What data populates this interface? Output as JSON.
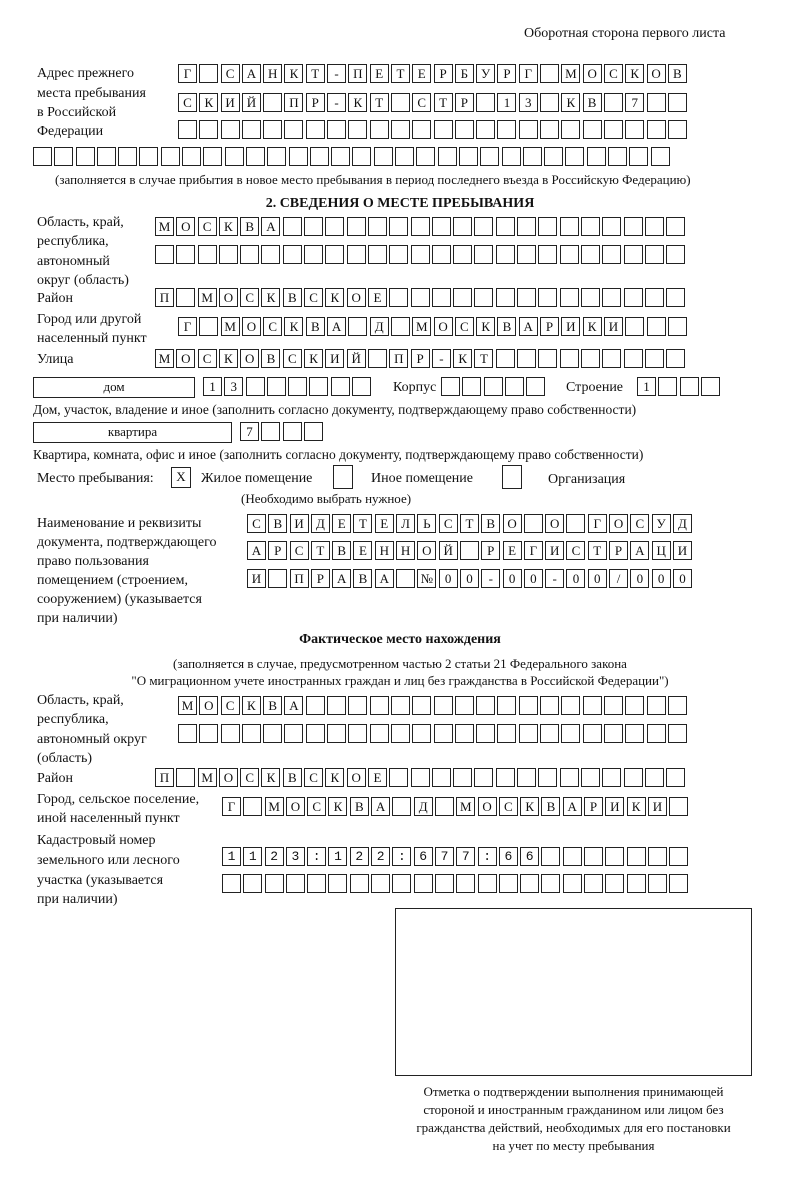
{
  "header": "Оборотная сторона первого листа",
  "prev_address": {
    "label": [
      "Адрес прежнего",
      "места пребывания",
      "в Российской",
      "Федерации"
    ],
    "rows": [
      "Г САНКТ-ПЕТЕРБУРГ МОСКОВ",
      "СКИЙ ПР-КТ СТР 13 КВ 7",
      "",
      ""
    ],
    "note": "(заполняется в случае прибытия в новое место пребывания в период последнего въезда в Российскую Федерацию)"
  },
  "section2": {
    "title": "2. СВЕДЕНИЯ О МЕСТЕ ПРЕБЫВАНИЯ",
    "region_label": [
      "Область, край,",
      "республика,",
      "автономный",
      "округ (область)"
    ],
    "region_rows": [
      "МОСКВА",
      ""
    ],
    "district_label": "Район",
    "district": "П МОСКВСКОЕ",
    "city_label": [
      "Город или другой",
      "населенный пункт"
    ],
    "city": "Г МОСКВА Д МОСКВАРИКИ",
    "street_label": "Улица",
    "street": "МОСКОВСКИЙ ПР-КТ",
    "house_type": "дом",
    "house": "13",
    "korpus_label": "Корпус",
    "korpus": "",
    "building_label": "Строение",
    "building": "1",
    "house_note": "Дом, участок, владение и иное (заполнить согласно документу, подтверждающему право собственности)",
    "flat_type": "квартира",
    "flat": "7",
    "flat_note": "Квартира, комната, офис и иное (заполнить согласно документу, подтверждающему право собственности)",
    "place_label": "Место пребывания:",
    "options": [
      {
        "label": "Жилое помещение",
        "mark": "X"
      },
      {
        "label": "Иное помещение",
        "mark": ""
      },
      {
        "label": "Организация",
        "mark": ""
      }
    ],
    "choose_note": "(Необходимо выбрать нужное)",
    "doc_label": [
      "Наименование и реквизиты",
      "документа, подтверждающего",
      "право пользования",
      "помещением (строением,",
      "сооружением) (указывается",
      "при наличии)"
    ],
    "doc_rows": [
      "СВИДЕТЕЛЬСТВО О ГОСУД",
      "АРСТВЕННОЙ РЕГИСТРАЦИ",
      "И ПРАВА №00-00-00/000"
    ]
  },
  "actual": {
    "title": "Фактическое место нахождения",
    "note": [
      "(заполняется в случае, предусмотренном частью 2 статьи 21 Федерального закона",
      "\"О миграционном учете иностранных граждан и лиц без гражданства в Российской Федерации\")"
    ],
    "region_label": [
      "Область, край,",
      "республика,",
      "автономный округ",
      "(область)"
    ],
    "region_rows": [
      "МОСКВА",
      ""
    ],
    "district_label": "Район",
    "district": "П МОСКВСКОЕ",
    "city_label": [
      "Город, сельское поселение,",
      "иной населенный пункт"
    ],
    "city": "Г МОСКВА Д МОСКВАРИКИ",
    "cadastre_label": [
      "Кадастровый номер",
      "земельного или лесного",
      "участка (указывается",
      "при наличии)"
    ],
    "cadastre_rows": [
      "1123:122:677:66",
      ""
    ]
  },
  "stamp_caption": [
    "Отметка о подтверждении выполнения принимающей",
    "стороной и иностранным гражданином или лицом без",
    "гражданства действий, необходимых для его постановки",
    "на учет по месту пребывания"
  ]
}
